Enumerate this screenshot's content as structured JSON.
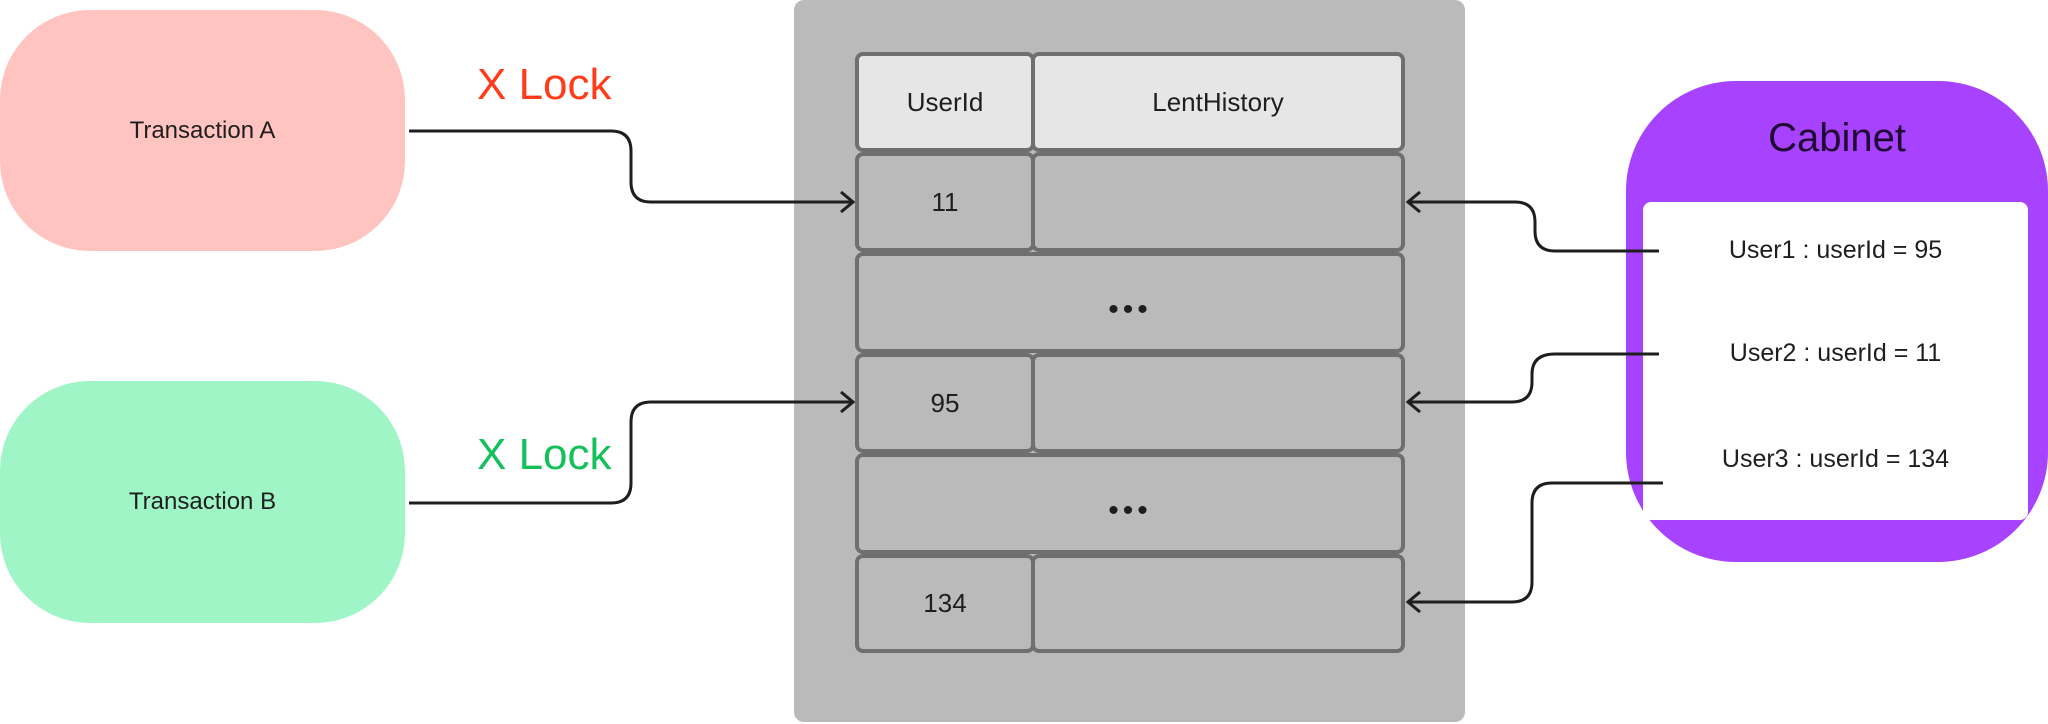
{
  "transactions": [
    {
      "label": "Transaction A",
      "lock_label": "X Lock",
      "color": "#ffc4bf",
      "lock_color": "#ff3b1a"
    },
    {
      "label": "Transaction B",
      "lock_label": "X Lock",
      "color": "#9ff5c5",
      "lock_color": "#14c05a"
    }
  ],
  "table": {
    "headers": [
      "UserId",
      "LentHistory"
    ],
    "rows": [
      {
        "user_id": "11"
      },
      {
        "ellipsis": "•••"
      },
      {
        "user_id": "95"
      },
      {
        "ellipsis": "•••"
      },
      {
        "user_id": "134"
      }
    ]
  },
  "cabinet": {
    "title": "Cabinet",
    "color": "#a742ff",
    "users": [
      "User1 : userId = 95",
      "User2 : userId = 11",
      "User3 : userId = 134"
    ]
  }
}
